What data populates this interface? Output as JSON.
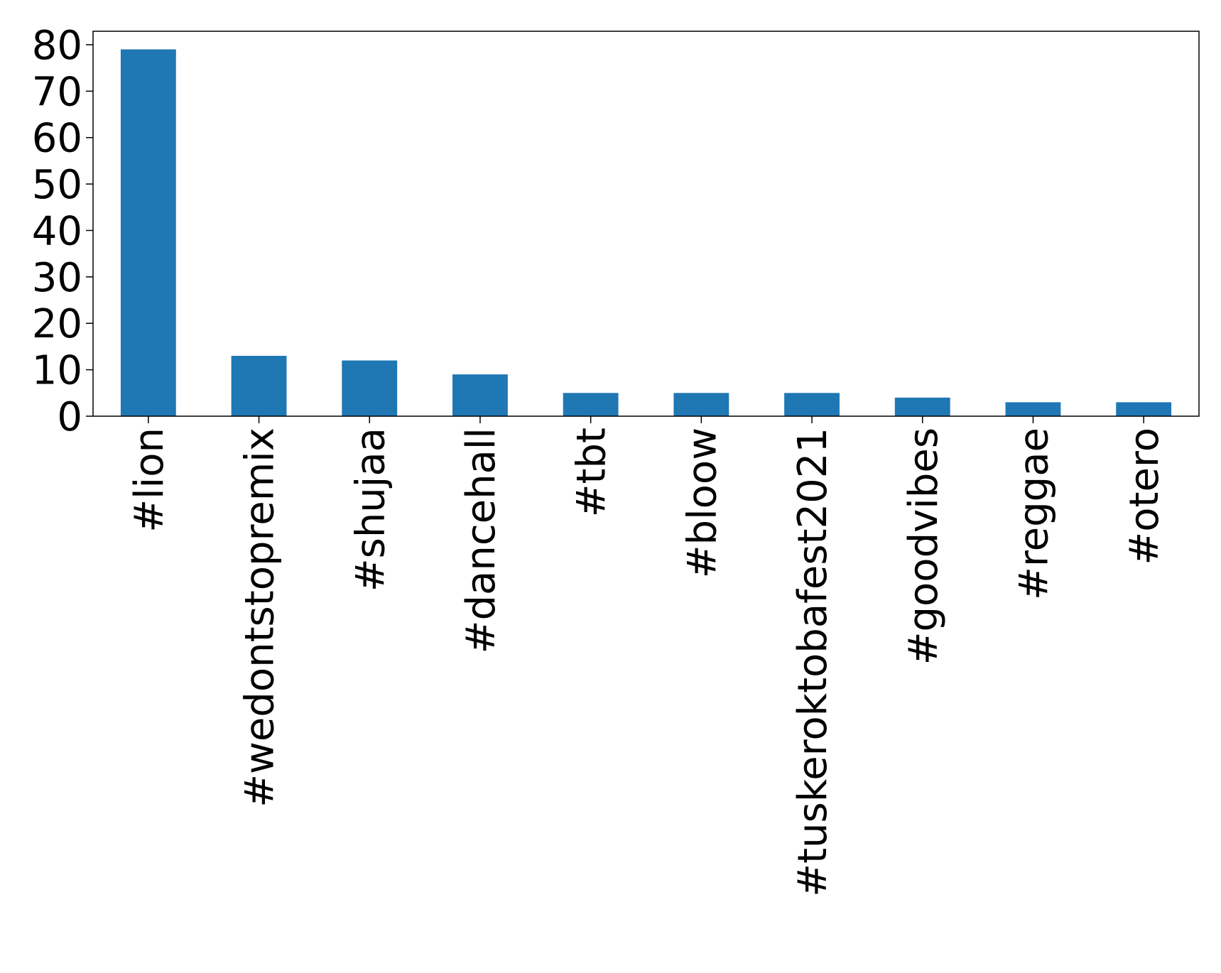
{
  "chart_data": {
    "type": "bar",
    "categories": [
      "#lion",
      "#wedontstopremix",
      "#shujaa",
      "#dancehall",
      "#tbt",
      "#bloow",
      "#tuskeroktobafest2021",
      "#goodvibes",
      "#reggae",
      "#otero"
    ],
    "values": [
      79,
      13,
      12,
      9,
      5,
      5,
      5,
      4,
      3,
      3
    ],
    "title": "",
    "xlabel": "",
    "ylabel": "",
    "ylim": [
      0,
      82.9
    ],
    "yticks": [
      0,
      10,
      20,
      30,
      40,
      50,
      60,
      70,
      80
    ],
    "grid": false,
    "bar_color": "#1f77b4"
  }
}
